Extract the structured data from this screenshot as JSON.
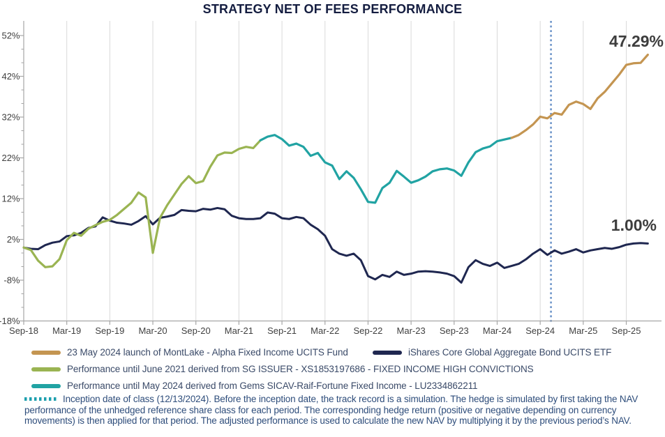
{
  "title": "STRATEGY NET OF FEES PERFORMANCE",
  "colors": {
    "strategy_live": "#c49551",
    "strategy_sg": "#9ab452",
    "strategy_gems": "#21a3a3",
    "benchmark": "#1f2750",
    "inception_line": "#6f96c9",
    "footnote_marker": "#1d9fae",
    "grid": "#d9d9d9",
    "axis": "#a6a6a6",
    "tick_label": "#404040",
    "annotation": "#3d3d3d",
    "title_color": "#141d40",
    "legend_text": "#3a4a68",
    "footnote_text": "#2e4d7b"
  },
  "legend": {
    "items": [
      {
        "label": "23 May 2024 launch of MontLake - Alpha Fixed Income UCITS Fund",
        "color_key": "strategy_live"
      },
      {
        "label": "iShares Core Global Aggregate Bond UCITS ETF",
        "color_key": "benchmark"
      },
      {
        "label": "Performance until June 2021 derived from SG ISSUER - XS1853197686 - FIXED INCOME HIGH CONVICTIONS",
        "color_key": "strategy_sg"
      },
      {
        "label": "Performance until May 2024 derived from Gems SICAV-Raif-Fortune Fixed Income - LU2334862211",
        "color_key": "strategy_gems"
      }
    ]
  },
  "footnote": {
    "text": "Inception date of class (12/13/2024). Before the inception date, the track record is a simulation. The hedge is simulated by first taking the NAV performance of the unhedged reference share class for each period. The corresponding hedge return (positive or negative depending on currency movements) is then applied for that period. The adjusted performance is used to calculate the new NAV by multiplying it by the previous period’s NAV."
  },
  "annotations": {
    "strategy_final": "47.29%",
    "benchmark_final": "1.00%"
  },
  "chart_data": {
    "type": "line",
    "title": "STRATEGY NET OF FEES PERFORMANCE",
    "unit": "percent cumulative return",
    "x_start_month": "Sep-18",
    "x_end_month": "Dec-25",
    "months_per_point": 1,
    "grid": "vertical-only",
    "legend_position": "bottom",
    "x_axis": {
      "tick_labels": [
        "Sep-18",
        "Mar-19",
        "Sep-19",
        "Mar-20",
        "Sep-20",
        "Mar-21",
        "Sep-21",
        "Mar-22",
        "Sep-22",
        "Mar-23",
        "Sep-23",
        "Mar-24",
        "Sep-24",
        "Mar-25",
        "Sep-25"
      ],
      "tick_month_indices": [
        0,
        6,
        12,
        18,
        24,
        30,
        36,
        42,
        48,
        54,
        60,
        66,
        72,
        78,
        84
      ]
    },
    "y_axis": {
      "tick_labels": [
        "52%",
        "42%",
        "32%",
        "22%",
        "12%",
        "2%",
        "-8%",
        "-18%"
      ],
      "tick_values": [
        52,
        42,
        32,
        22,
        12,
        2,
        -8,
        -18
      ],
      "min": -18,
      "max": 55.5,
      "minor_unit": 3.333
    },
    "inception_line": {
      "date_label": "12/13/2024",
      "month_index": 73.5
    },
    "series": [
      {
        "name": "Strategy net of fees (simulated track record + live fund)",
        "final_value_label": "47.29%",
        "segments": [
          {
            "legend": "Performance until June 2021 derived from SG ISSUER - XS1853197686 - FIXED INCOME HIGH CONVICTIONS",
            "color_key": "strategy_sg",
            "start_month_index": 0,
            "values": [
              0.0,
              -0.6,
              -3.2,
              -4.8,
              -4.6,
              -2.8,
              1.8,
              3.6,
              2.9,
              4.6,
              5.5,
              6.3,
              6.8,
              8.0,
              9.5,
              11.0,
              13.5,
              12.3,
              -1.3,
              7.3,
              10.4,
              13.0,
              15.6,
              17.5,
              15.8,
              16.3,
              19.8,
              22.6,
              23.3,
              23.2,
              24.2,
              24.7,
              24.4,
              26.3
            ]
          },
          {
            "legend": "Performance until May 2024 derived from Gems SICAV-Raif-Fortune Fixed Income - LU2334862211",
            "color_key": "strategy_gems",
            "start_month_index": 33,
            "values": [
              26.3,
              27.2,
              27.6,
              26.6,
              25.0,
              25.5,
              24.7,
              22.5,
              23.2,
              20.9,
              20.1,
              16.8,
              18.7,
              17.1,
              14.3,
              11.2,
              11.0,
              14.6,
              15.9,
              18.8,
              17.4,
              15.9,
              16.5,
              17.4,
              18.7,
              19.2,
              19.4,
              18.9,
              17.6,
              20.9,
              23.4,
              24.3,
              24.8,
              26.1,
              26.5,
              26.9
            ]
          },
          {
            "legend": "23 May 2024 launch of MontLake - Alpha Fixed Income UCITS Fund",
            "color_key": "strategy_live",
            "start_month_index": 68,
            "values": [
              26.9,
              27.6,
              28.8,
              30.2,
              32.1,
              31.7,
              33.0,
              32.6,
              35.0,
              35.8,
              35.2,
              34.0,
              36.6,
              38.2,
              40.3,
              42.4,
              44.8,
              45.2,
              45.3,
              47.29
            ]
          }
        ]
      },
      {
        "name": "iShares Core Global Aggregate Bond UCITS ETF",
        "final_value_label": "1.00%",
        "color_key": "benchmark",
        "start_month_index": 0,
        "values": [
          0.0,
          -0.3,
          -0.4,
          0.6,
          1.2,
          1.5,
          2.8,
          3.0,
          3.6,
          4.8,
          5.2,
          7.4,
          6.6,
          6.1,
          5.9,
          5.6,
          6.5,
          7.7,
          5.7,
          7.3,
          7.6,
          8.0,
          9.2,
          9.0,
          8.9,
          9.5,
          9.3,
          9.7,
          9.4,
          7.8,
          7.2,
          7.0,
          7.0,
          7.2,
          8.6,
          8.3,
          7.2,
          7.0,
          7.5,
          7.2,
          5.6,
          4.5,
          2.9,
          -0.4,
          -1.5,
          -2.0,
          -1.5,
          -3.1,
          -7.0,
          -7.8,
          -6.7,
          -7.2,
          -5.9,
          -6.7,
          -6.4,
          -5.9,
          -5.8,
          -5.9,
          -6.1,
          -6.4,
          -7.0,
          -8.6,
          -4.8,
          -3.1,
          -4.0,
          -4.5,
          -3.7,
          -5.0,
          -4.5,
          -4.0,
          -2.9,
          -1.5,
          -0.4,
          -1.8,
          -0.7,
          -1.5,
          -1.0,
          -0.4,
          -1.2,
          -0.7,
          -0.4,
          -0.1,
          -0.3,
          0.1,
          0.7,
          1.0,
          1.1,
          1.0
        ]
      }
    ]
  }
}
